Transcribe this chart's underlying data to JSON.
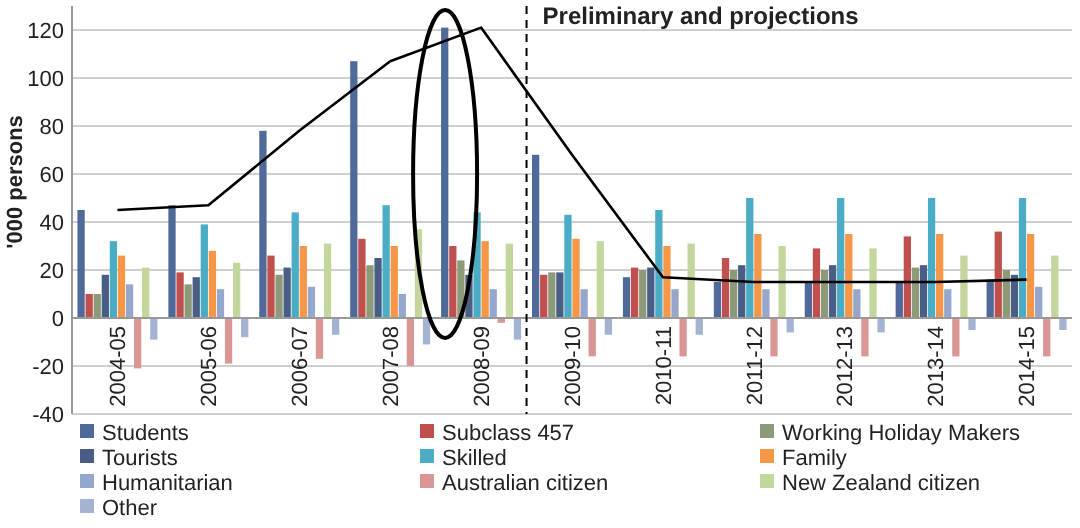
{
  "chart_data": {
    "type": "bar",
    "ylabel": "'000 persons",
    "categories": [
      "2004-05",
      "2005-06",
      "2006-07",
      "2007-08",
      "2008-09",
      "2009-10",
      "2010-11",
      "2011-12",
      "2012-13",
      "2013-14",
      "2014-15"
    ],
    "series": [
      {
        "name": "Students",
        "color": "#4f6a9a",
        "values": [
          45,
          47,
          78,
          107,
          121,
          68,
          17,
          15,
          15,
          15,
          16
        ]
      },
      {
        "name": "Subclass 457",
        "color": "#c0504d",
        "values": [
          10,
          19,
          26,
          33,
          30,
          18,
          21,
          25,
          29,
          34,
          36
        ]
      },
      {
        "name": "Working Holiday Makers",
        "color": "#8c9a78",
        "values": [
          10,
          14,
          18,
          22,
          24,
          19,
          20,
          20,
          20,
          21,
          20
        ]
      },
      {
        "name": "Tourists",
        "color": "#4a5e85",
        "values": [
          18,
          17,
          21,
          25,
          18,
          19,
          21,
          22,
          22,
          22,
          18
        ]
      },
      {
        "name": "Skilled",
        "color": "#4bacc6",
        "values": [
          32,
          39,
          44,
          47,
          44,
          43,
          45,
          50,
          50,
          50,
          50
        ]
      },
      {
        "name": "Family",
        "color": "#f79646",
        "values": [
          26,
          28,
          30,
          30,
          32,
          33,
          30,
          35,
          35,
          35,
          35
        ]
      },
      {
        "name": "Humanitarian",
        "color": "#95a7cc",
        "values": [
          14,
          12,
          13,
          10,
          12,
          12,
          12,
          12,
          12,
          12,
          13
        ]
      },
      {
        "name": "Australian citizen",
        "color": "#d99694",
        "values": [
          -21,
          -19,
          -17,
          -20,
          -2,
          -16,
          -16,
          -16,
          -16,
          -16,
          -16
        ]
      },
      {
        "name": "New Zealand citizen",
        "color": "#c3d69b",
        "values": [
          21,
          23,
          31,
          37,
          31,
          32,
          31,
          30,
          29,
          26,
          26
        ]
      },
      {
        "name": "Other",
        "color": "#a3b3d1",
        "values": [
          -9,
          -8,
          -7,
          -11,
          -9,
          -7,
          -7,
          -6,
          -6,
          -5,
          -5
        ]
      },
      {
        "type": "line",
        "color": "#000000",
        "values": [
          45,
          47,
          78,
          107,
          121,
          68,
          17,
          15,
          15,
          15,
          16
        ]
      }
    ],
    "ylim": [
      -40,
      130
    ],
    "yticks": [
      -40,
      -20,
      0,
      20,
      40,
      60,
      80,
      100,
      120
    ],
    "grid": "y",
    "legend": "bottom",
    "ref_lines": [
      {
        "axis": "x",
        "value": "2009-10",
        "label": "Preliminary and projections",
        "line_style": "dashed",
        "color": "#000000"
      }
    ]
  }
}
